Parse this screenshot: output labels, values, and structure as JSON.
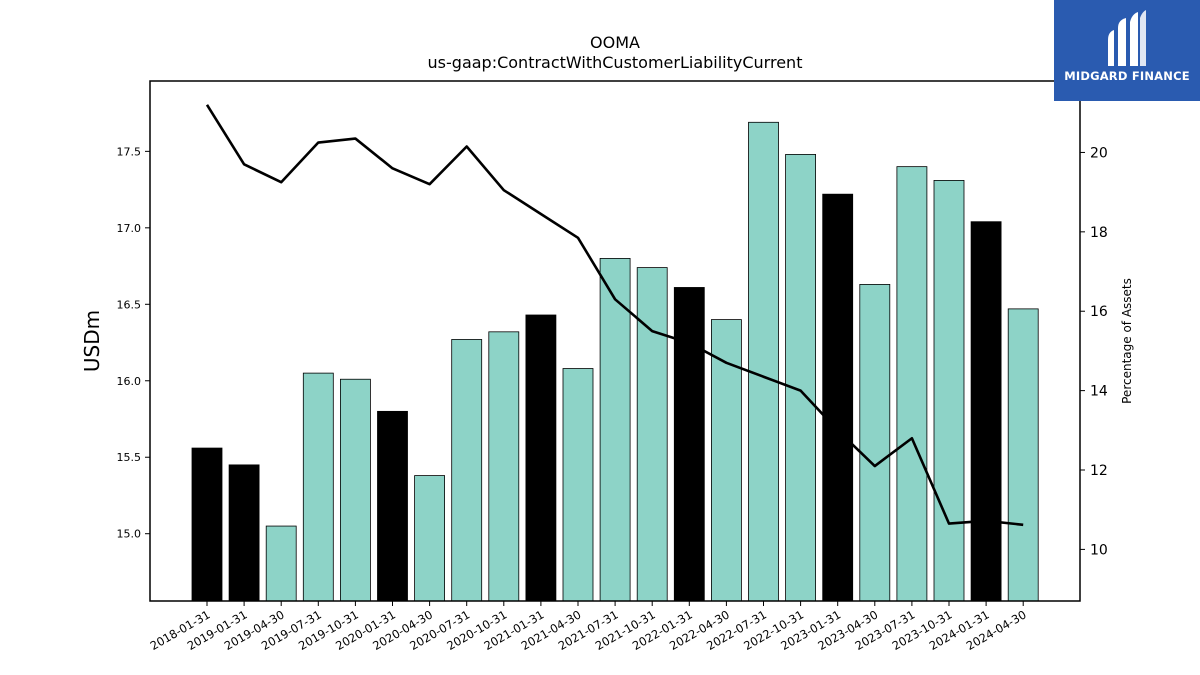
{
  "chart_data": {
    "type": "bar",
    "title": "OOMA",
    "subtitle": "us-gaap:ContractWithCustomerLiabilityCurrent",
    "ylabel": "USDm",
    "y2label": "Percentage of Assets",
    "ylim": [
      14.56,
      17.96
    ],
    "y2lim": [
      8.7,
      21.8
    ],
    "yticks": [
      15.0,
      15.5,
      16.0,
      16.5,
      17.0,
      17.5
    ],
    "y2ticks": [
      10,
      12,
      14,
      16,
      18,
      20
    ],
    "categories": [
      "2018-01-31",
      "2019-01-31",
      "2019-04-30",
      "2019-07-31",
      "2019-10-31",
      "2020-01-31",
      "2020-04-30",
      "2020-07-31",
      "2020-10-31",
      "2021-01-31",
      "2021-04-30",
      "2021-07-31",
      "2021-10-31",
      "2022-01-31",
      "2022-04-30",
      "2022-07-31",
      "2022-10-31",
      "2023-01-31",
      "2023-04-30",
      "2023-07-31",
      "2023-10-31",
      "2024-01-31",
      "2024-04-30"
    ],
    "series": [
      {
        "type": "bar",
        "values": [
          15.56,
          15.45,
          15.05,
          16.05,
          16.01,
          15.8,
          15.38,
          16.27,
          16.32,
          16.43,
          16.08,
          16.8,
          16.74,
          16.61,
          16.4,
          17.69,
          17.48,
          17.22,
          16.63,
          17.4,
          17.31,
          17.04,
          16.47
        ],
        "highlight": [
          true,
          true,
          false,
          false,
          false,
          true,
          false,
          false,
          false,
          true,
          false,
          false,
          false,
          true,
          false,
          false,
          false,
          true,
          false,
          false,
          false,
          true,
          false
        ]
      },
      {
        "type": "line",
        "axis": "right",
        "values": [
          21.2,
          19.7,
          19.25,
          20.25,
          20.35,
          19.6,
          19.2,
          20.15,
          19.05,
          18.45,
          17.85,
          16.3,
          15.5,
          15.2,
          14.7,
          14.35,
          14.0,
          13.0,
          12.1,
          12.8,
          10.65,
          10.72,
          10.62
        ]
      }
    ],
    "colors": {
      "bar": "#8dd3c7",
      "highlight": "#000000",
      "line": "#000000"
    },
    "grid": false
  },
  "logo": {
    "text": "MIDGARD FINANCE",
    "icon": "midgard-logo-icon"
  }
}
